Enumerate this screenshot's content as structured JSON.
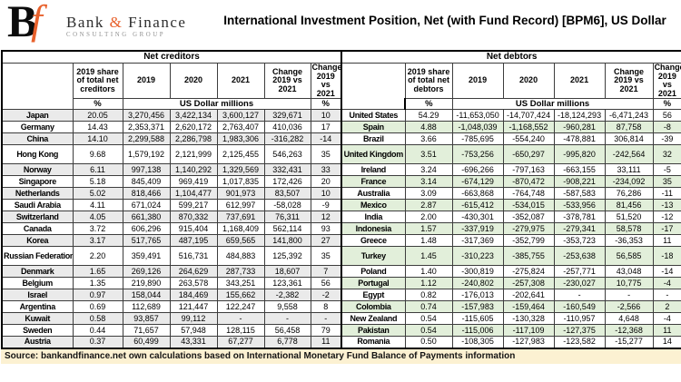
{
  "brand": {
    "logo_b": "B",
    "logo_f": "f",
    "name_bank": "Bank",
    "name_amp": "&",
    "name_finance": "Finance",
    "subtitle": "CONSULTING GROUP",
    "accent_color": "#E8612C"
  },
  "source": "Source: bankandfinance.net own calculations based on International Monetary Fund Balance of Payments information",
  "colors": {
    "stripe_gray": "#EAEAEA",
    "stripe_green": "#E2EFDA",
    "source_bg": "#FCF1D2",
    "border": "#3d3d3d",
    "accent_orange": "#E8612C"
  },
  "chart_data": {
    "type": "table",
    "title": "International Investment Position, Net (with Fund Record) [BPM6], US Dollar",
    "unit": "US Dollar millions",
    "column_keys": [
      "country",
      "2019_share_of_total_pct",
      "2019",
      "2020",
      "2021",
      "change_2019_vs_2021",
      "change_2019_vs_2021_pct"
    ],
    "tall_rows": [
      3,
      11
    ],
    "sections": [
      {
        "label": "Net creditors",
        "share_header": "2019 share of total net creditors",
        "year_headers": [
          "2019",
          "2020",
          "2021"
        ],
        "change_header": "Change 2019 vs 2021",
        "unit_share": "%",
        "unit_values": "US Dollar millions",
        "unit_change_pct": "%",
        "rows": [
          [
            "Japan",
            "20.05",
            "3,270,456",
            "3,422,134",
            "3,600,127",
            "329,671",
            "10"
          ],
          [
            "Germany",
            "14.43",
            "2,353,371",
            "2,620,172",
            "2,763,407",
            "410,036",
            "17"
          ],
          [
            "China",
            "14.10",
            "2,299,588",
            "2,286,798",
            "1,983,306",
            "-316,282",
            "-14"
          ],
          [
            "Hong Kong",
            "9.68",
            "1,579,192",
            "2,121,999",
            "2,125,455",
            "546,263",
            "35"
          ],
          [
            "Norway",
            "6.11",
            "997,138",
            "1,140,292",
            "1,329,569",
            "332,431",
            "33"
          ],
          [
            "Singapore",
            "5.18",
            "845,409",
            "969,419",
            "1,017,835",
            "172,426",
            "20"
          ],
          [
            "Netherlands",
            "5.02",
            "818,466",
            "1,104,477",
            "901,973",
            "83,507",
            "10"
          ],
          [
            "Saudi Arabia",
            "4.11",
            "671,024",
            "599,217",
            "612,997",
            "-58,028",
            "-9"
          ],
          [
            "Switzerland",
            "4.05",
            "661,380",
            "870,332",
            "737,691",
            "76,311",
            "12"
          ],
          [
            "Canada",
            "3.72",
            "606,296",
            "915,404",
            "1,168,409",
            "562,114",
            "93"
          ],
          [
            "Korea",
            "3.17",
            "517,765",
            "487,195",
            "659,565",
            "141,800",
            "27"
          ],
          [
            "Russian Federation",
            "2.20",
            "359,491",
            "516,731",
            "484,883",
            "125,392",
            "35"
          ],
          [
            "Denmark",
            "1.65",
            "269,126",
            "264,629",
            "287,733",
            "18,607",
            "7"
          ],
          [
            "Belgium",
            "1.35",
            "219,890",
            "263,578",
            "343,251",
            "123,361",
            "56"
          ],
          [
            "Israel",
            "0.97",
            "158,044",
            "184,469",
            "155,662",
            "-2,382",
            "-2"
          ],
          [
            "Argentina",
            "0.69",
            "112,689",
            "121,447",
            "122,247",
            "9,558",
            "8"
          ],
          [
            "Kuwait",
            "0.58",
            "93,857",
            "99,112",
            "-",
            "-",
            "-"
          ],
          [
            "Sweden",
            "0.44",
            "71,657",
            "57,948",
            "128,115",
            "56,458",
            "79"
          ],
          [
            "Austria",
            "0.37",
            "60,499",
            "43,331",
            "67,277",
            "6,778",
            "11"
          ]
        ]
      },
      {
        "label": "Net debtors",
        "share_header": "2019 share of total net debtors",
        "year_headers": [
          "2019",
          "2020",
          "2021"
        ],
        "change_header": "Change 2019 vs 2021",
        "unit_share": "%",
        "unit_values": "US Dollar millions",
        "unit_change_pct": "%",
        "rows": [
          [
            "United States",
            "54.29",
            "-11,653,050",
            "-14,707,424",
            "-18,124,293",
            "-6,471,243",
            "56"
          ],
          [
            "Spain",
            "4.88",
            "-1,048,039",
            "-1,168,552",
            "-960,281",
            "87,758",
            "-8"
          ],
          [
            "Brazil",
            "3.66",
            "-785,695",
            "-554,240",
            "-478,881",
            "306,814",
            "-39"
          ],
          [
            "United Kingdom",
            "3.51",
            "-753,256",
            "-650,297",
            "-995,820",
            "-242,564",
            "32"
          ],
          [
            "Ireland",
            "3.24",
            "-696,266",
            "-797,163",
            "-663,155",
            "33,111",
            "-5"
          ],
          [
            "France",
            "3.14",
            "-674,129",
            "-870,472",
            "-908,221",
            "-234,092",
            "35"
          ],
          [
            "Australia",
            "3.09",
            "-663,868",
            "-764,748",
            "-587,583",
            "76,286",
            "-11"
          ],
          [
            "Mexico",
            "2.87",
            "-615,412",
            "-534,015",
            "-533,956",
            "81,456",
            "-13"
          ],
          [
            "India",
            "2.00",
            "-430,301",
            "-352,087",
            "-378,781",
            "51,520",
            "-12"
          ],
          [
            "Indonesia",
            "1.57",
            "-337,919",
            "-279,975",
            "-279,341",
            "58,578",
            "-17"
          ],
          [
            "Greece",
            "1.48",
            "-317,369",
            "-352,799",
            "-353,723",
            "-36,353",
            "11"
          ],
          [
            "Turkey",
            "1.45",
            "-310,223",
            "-385,755",
            "-253,638",
            "56,585",
            "-18"
          ],
          [
            "Poland",
            "1.40",
            "-300,819",
            "-275,824",
            "-257,771",
            "43,048",
            "-14"
          ],
          [
            "Portugal",
            "1.12",
            "-240,802",
            "-257,308",
            "-230,027",
            "10,775",
            "-4"
          ],
          [
            "Egypt",
            "0.82",
            "-176,013",
            "-202,641",
            "-",
            "-",
            "-"
          ],
          [
            "Colombia",
            "0.74",
            "-157,983",
            "-159,464",
            "-160,549",
            "-2,566",
            "2"
          ],
          [
            "New Zealand",
            "0.54",
            "-115,605",
            "-130,328",
            "-110,957",
            "4,648",
            "-4"
          ],
          [
            "Pakistan",
            "0.54",
            "-115,006",
            "-117,109",
            "-127,375",
            "-12,368",
            "11"
          ],
          [
            "Romania",
            "0.50",
            "-108,305",
            "-127,983",
            "-123,582",
            "-15,277",
            "14"
          ]
        ]
      }
    ]
  }
}
